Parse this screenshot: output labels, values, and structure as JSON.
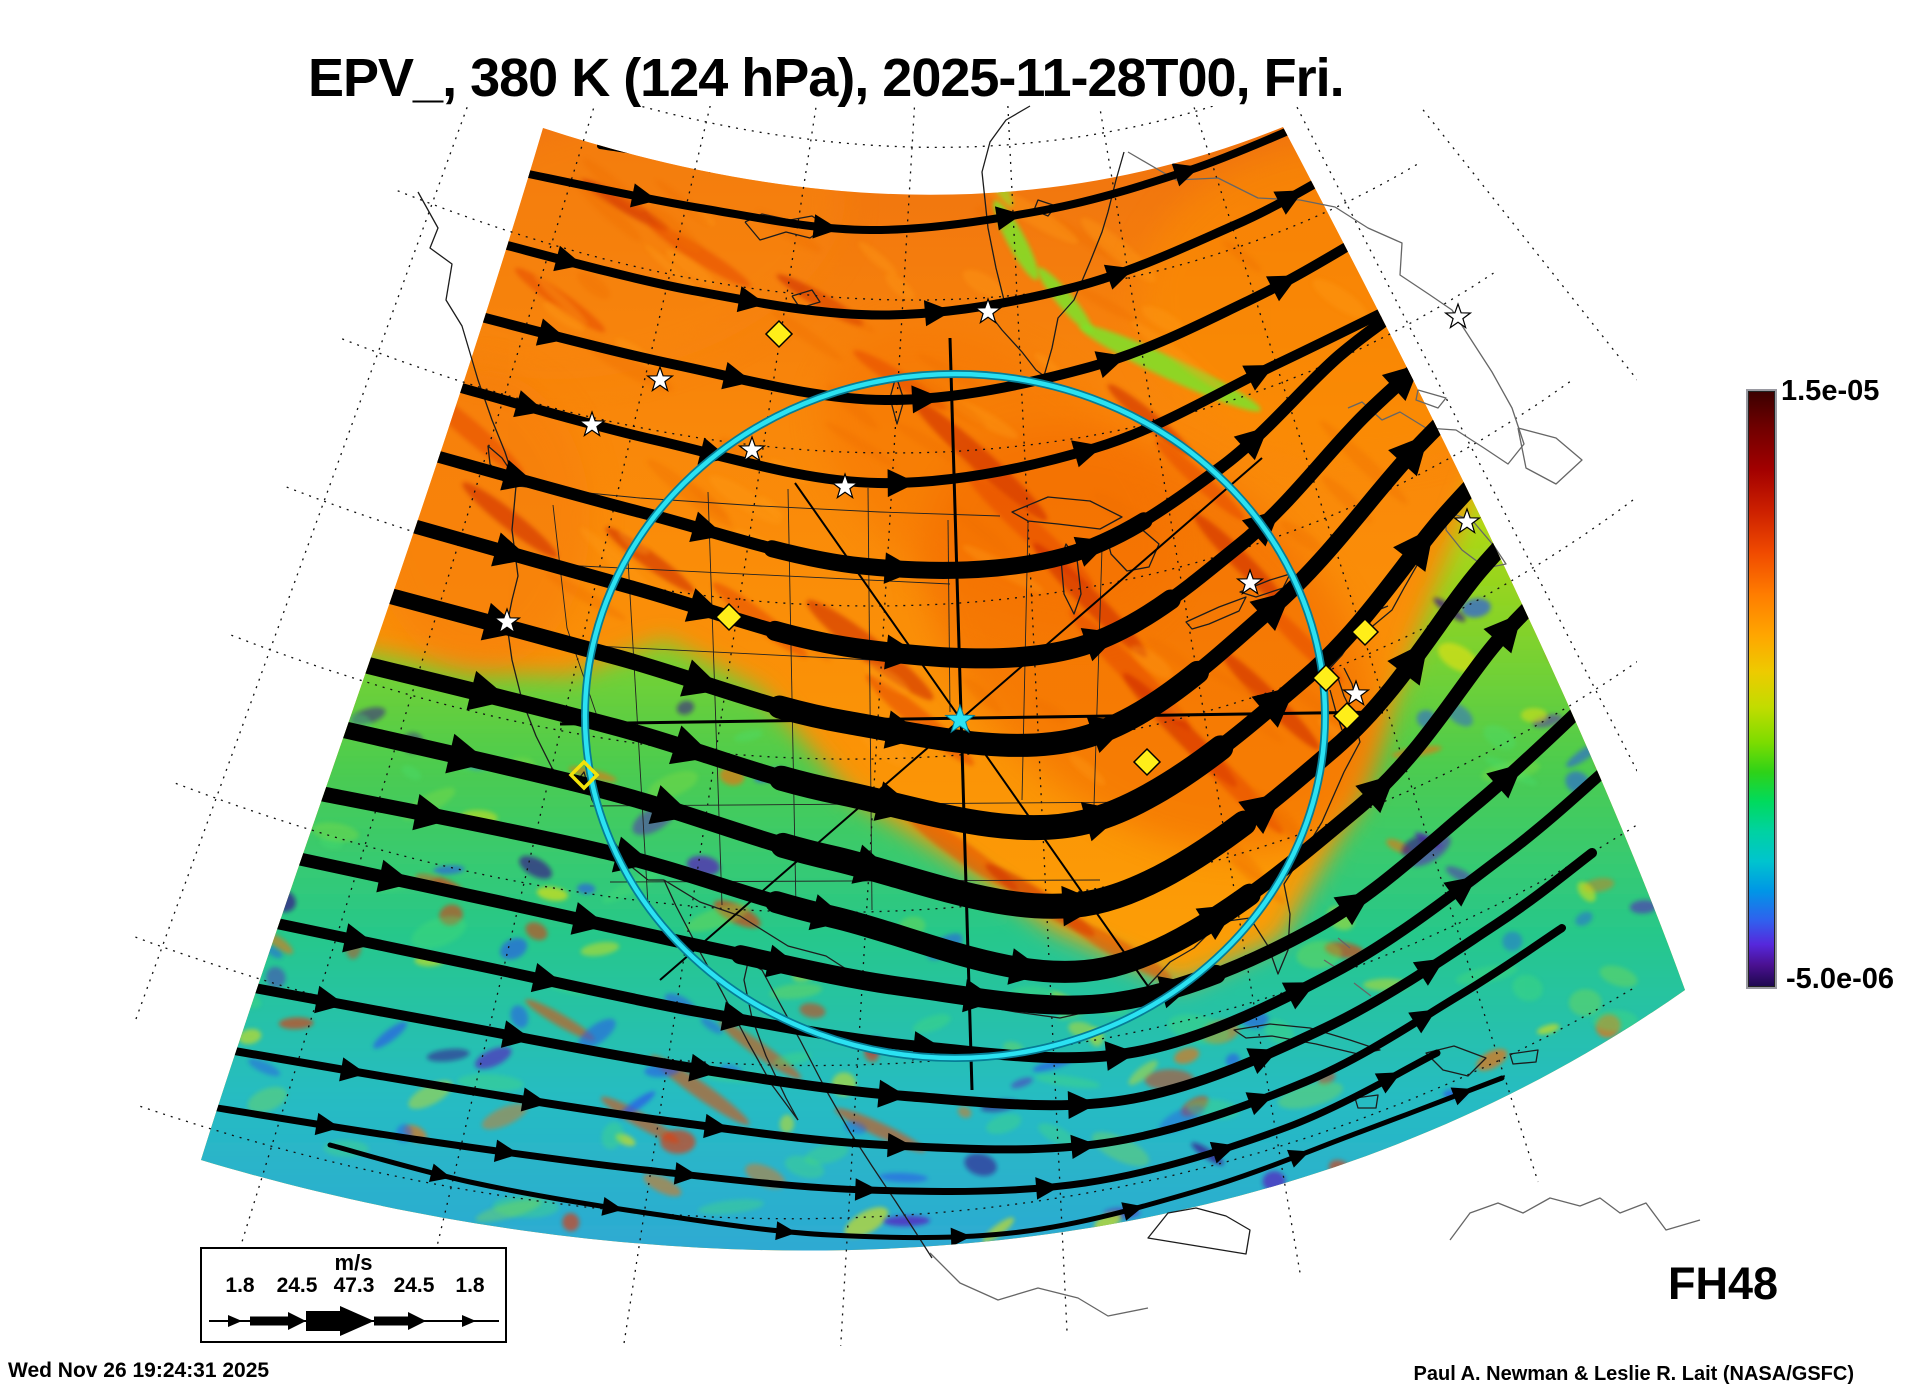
{
  "title": "EPV_, 380 K (124 hPa), 2025-11-28T00, Fri.",
  "colorbar": {
    "max_label": "1.5e-05",
    "min_label": "-5.0e-06",
    "gradient": [
      [
        "0",
        "#3c0000"
      ],
      [
        "0.06",
        "#700000"
      ],
      [
        "0.13",
        "#a20000"
      ],
      [
        "0.20",
        "#cc2000"
      ],
      [
        "0.27",
        "#f04a00"
      ],
      [
        "0.34",
        "#ff7c00"
      ],
      [
        "0.41",
        "#ffa600"
      ],
      [
        "0.47",
        "#eeca00"
      ],
      [
        "0.53",
        "#c2dc00"
      ],
      [
        "0.59",
        "#7cdc00"
      ],
      [
        "0.64",
        "#2ed218"
      ],
      [
        "0.69",
        "#00da5e"
      ],
      [
        "0.74",
        "#00d2a2"
      ],
      [
        "0.79",
        "#00c4ce"
      ],
      [
        "0.84",
        "#0096e6"
      ],
      [
        "0.89",
        "#3060ee"
      ],
      [
        "0.93",
        "#5628dc"
      ],
      [
        "0.965",
        "#4a1090"
      ],
      [
        "1",
        "#1e0850"
      ]
    ]
  },
  "wind_legend": {
    "units": "m/s",
    "speeds": [
      "1.8",
      "24.5",
      "47.3",
      "24.5",
      "1.8"
    ]
  },
  "footer": {
    "timestamp": "Wed Nov 26 19:24:31 2025",
    "forecast_hour": "FH48",
    "credit": "Paul A. Newman & Leslie R. Lait (NASA/GSFC)"
  },
  "map": {
    "overlays": {
      "ring_color": "#2be2f2",
      "center_marker": "cyan-star",
      "station_markers": "white-stars",
      "city_markers": "yellow-diamonds",
      "streamline_color": "#000000"
    },
    "field_colors": {
      "north": [
        "#f57a12",
        "#fb9007",
        "#ffb405"
      ],
      "south": [
        "#c8dc14",
        "#4ecc50",
        "#28c2b2",
        "#2ba6d6"
      ]
    },
    "station_star_count": 10,
    "city_diamond_count": 7
  }
}
